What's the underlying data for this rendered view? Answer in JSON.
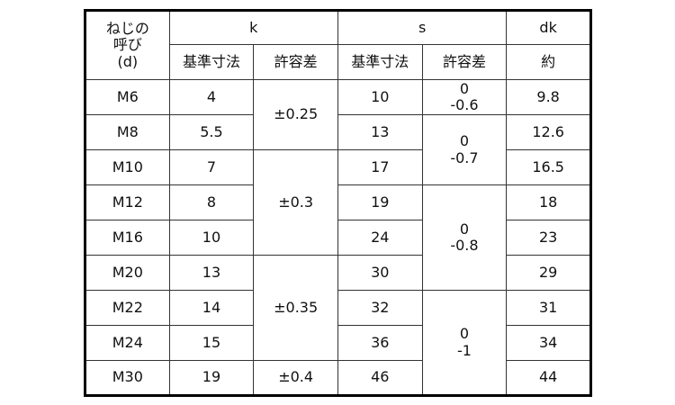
{
  "header": {
    "thread_label": [
      "ねじの",
      "呼び",
      "(d)"
    ],
    "k": "k",
    "s": "s",
    "dk": "dk",
    "basic_size": "基準寸法",
    "tolerance": "許容差",
    "approx": "約"
  },
  "rows": [
    {
      "d": "M6",
      "k": "4",
      "s": "10",
      "dk": "9.8"
    },
    {
      "d": "M8",
      "k": "5.5",
      "s": "13",
      "dk": "12.6"
    },
    {
      "d": "M10",
      "k": "7",
      "s": "17",
      "dk": "16.5"
    },
    {
      "d": "M12",
      "k": "8",
      "s": "19",
      "dk": "18"
    },
    {
      "d": "M16",
      "k": "10",
      "s": "24",
      "dk": "23"
    },
    {
      "d": "M20",
      "k": "13",
      "s": "30",
      "dk": "29"
    },
    {
      "d": "M22",
      "k": "14",
      "s": "32",
      "dk": "31"
    },
    {
      "d": "M24",
      "k": "15",
      "s": "36",
      "dk": "34"
    },
    {
      "d": "M30",
      "k": "19",
      "s": "46",
      "dk": "44"
    }
  ],
  "k_tolerances": [
    "±0.25",
    "±0.3",
    "±0.35",
    "±0.4"
  ],
  "s_tolerances": [
    {
      "upper": "0",
      "lower": "-0.6"
    },
    {
      "upper": "0",
      "lower": "-0.7"
    },
    {
      "upper": "0",
      "lower": "-0.8"
    },
    {
      "upper": "0",
      "lower": "-1"
    }
  ]
}
